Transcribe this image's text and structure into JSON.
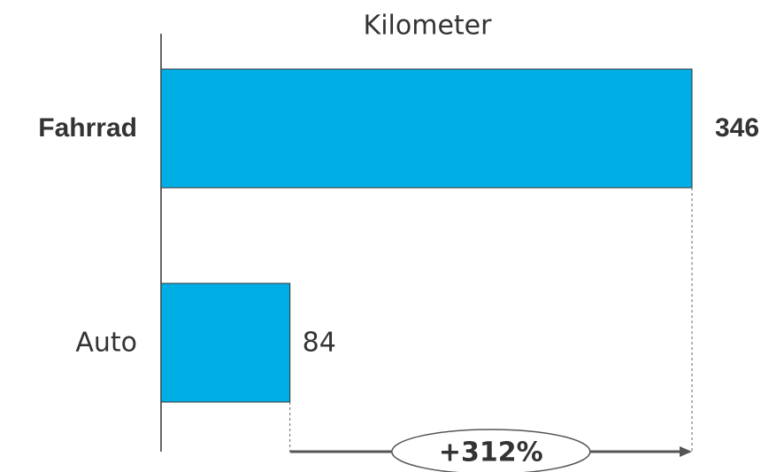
{
  "chart_data": {
    "type": "bar",
    "orientation": "horizontal",
    "title": "Kilometer",
    "categories": [
      "Fahrrad",
      "Auto"
    ],
    "values": [
      346,
      84
    ],
    "bold": [
      true,
      false
    ],
    "color": "#00aee6",
    "annotation": "+312%"
  }
}
